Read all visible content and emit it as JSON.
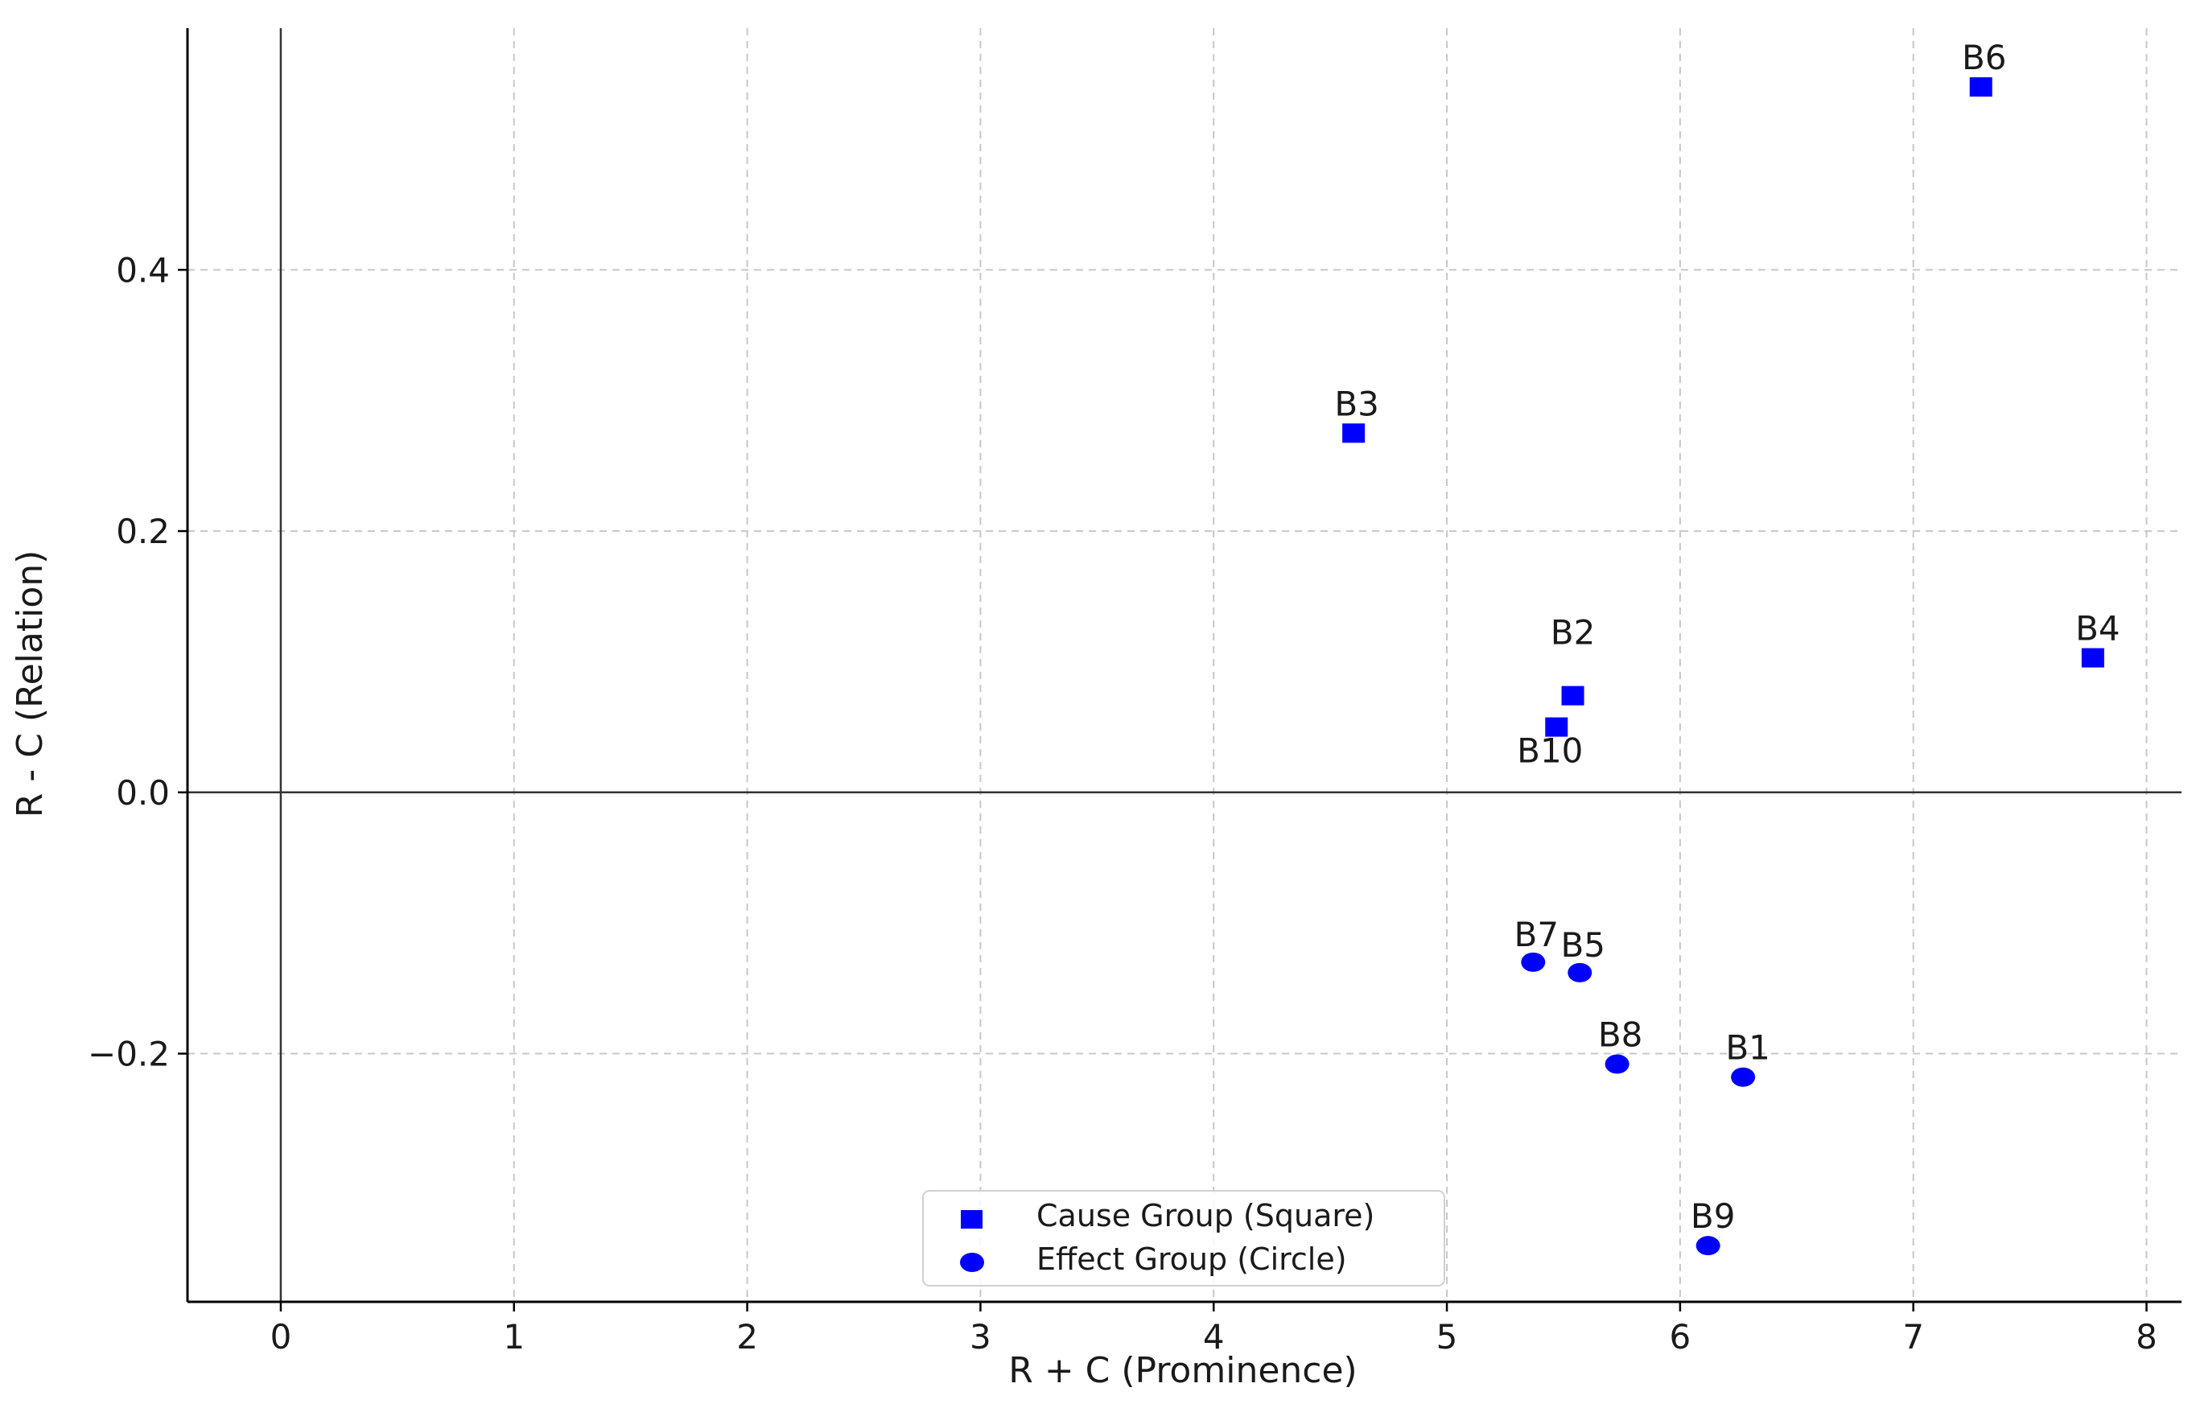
{
  "chart_data": {
    "type": "scatter",
    "title": "",
    "xlabel": "R + C (Prominence)",
    "ylabel": "R - C (Relation)",
    "xlim": [
      -0.4,
      8.15
    ],
    "ylim": [
      -0.39,
      0.585
    ],
    "xticks": [
      0,
      1,
      2,
      3,
      4,
      5,
      6,
      7,
      8
    ],
    "yticks": [
      -0.2,
      0.0,
      0.2,
      0.4
    ],
    "ytick_labels": [
      "−0.2",
      "0.0",
      "0.2",
      "0.4"
    ],
    "grid": true,
    "reference_lines": {
      "x": 0,
      "y": 0
    },
    "legend_position": "bottom-center",
    "series": [
      {
        "name": "Cause Group (Square)",
        "marker": "square",
        "color": "#0000ff",
        "points": [
          {
            "label": "B6",
            "x": 7.29,
            "y": 0.54
          },
          {
            "label": "B3",
            "x": 4.6,
            "y": 0.275
          },
          {
            "label": "B4",
            "x": 7.77,
            "y": 0.103
          },
          {
            "label": "B2",
            "x": 5.54,
            "y": 0.074
          },
          {
            "label": "B10",
            "x": 5.47,
            "y": 0.05
          }
        ]
      },
      {
        "name": "Effect Group (Circle)",
        "marker": "circle",
        "color": "#0000ff",
        "points": [
          {
            "label": "B7",
            "x": 5.37,
            "y": -0.13
          },
          {
            "label": "B5",
            "x": 5.57,
            "y": -0.138
          },
          {
            "label": "B8",
            "x": 5.73,
            "y": -0.208
          },
          {
            "label": "B1",
            "x": 6.27,
            "y": -0.218
          },
          {
            "label": "B9",
            "x": 6.12,
            "y": -0.347
          }
        ]
      }
    ]
  }
}
